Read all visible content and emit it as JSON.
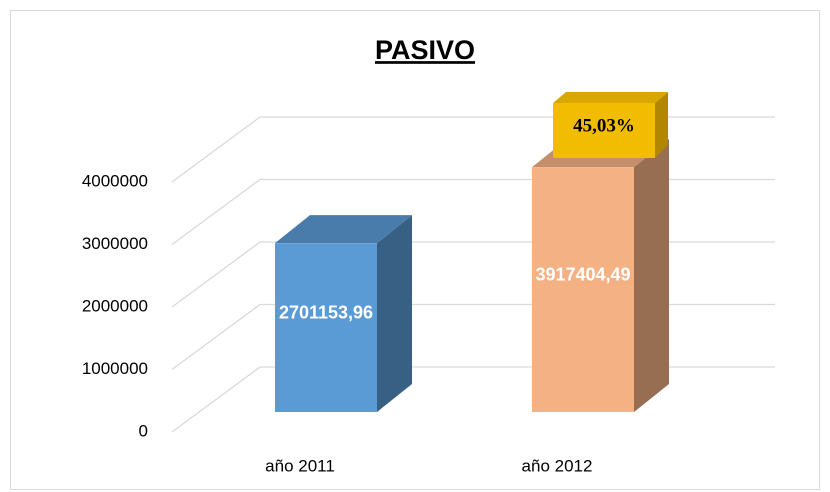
{
  "chart_data": {
    "type": "bar3d",
    "title": "PASIVO",
    "categories": [
      "año 2011",
      "año 2012"
    ],
    "values": [
      2701153.96,
      3917404.49
    ],
    "value_labels": [
      "2701153,96",
      "3917404,49"
    ],
    "colors": [
      "#5b9bd5",
      "#f4b183"
    ],
    "annotation": "45,03%",
    "ylim": [
      0,
      4000000
    ],
    "yticks": [
      0,
      1000000,
      2000000,
      3000000,
      4000000
    ],
    "grid": true
  }
}
